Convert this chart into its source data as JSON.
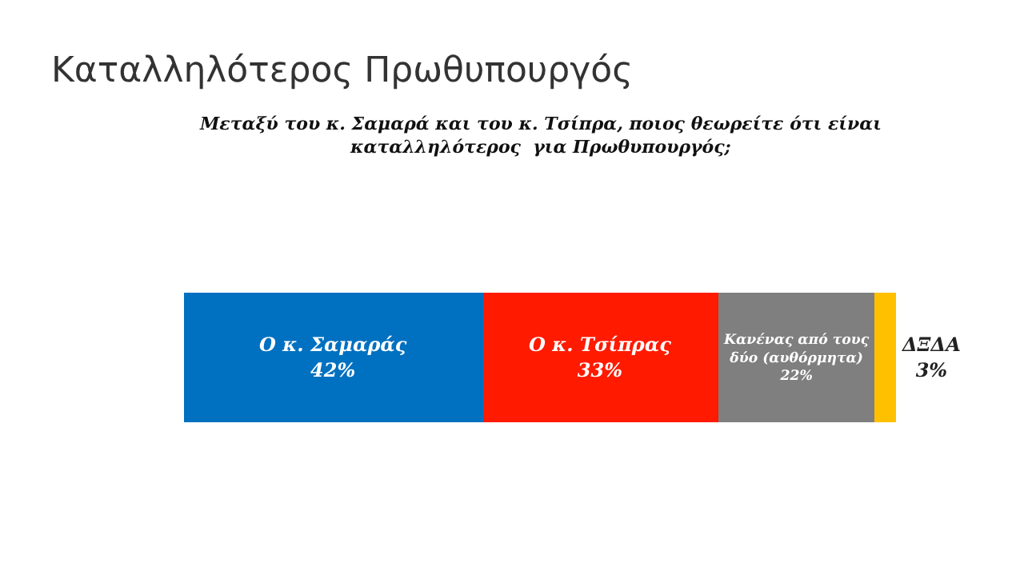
{
  "chart_data": {
    "type": "bar",
    "orientation": "horizontal",
    "stacked": true,
    "title": "Καταλληλότερος Πρωθυπουργός",
    "subtitle": "Μεταξύ του κ. Σαμαρά και του κ. Τσίπρα, ποιος θεωρείτε ότι είναι\nκαταλληλότερος  για Πρωθυπουργός;",
    "categories": [
      null
    ],
    "series": [
      {
        "name": "Ο κ. Σαμαράς",
        "color": "#0070c0",
        "values": [
          42
        ],
        "value_labels": [
          "42%"
        ]
      },
      {
        "name": "Ο κ. Τσίπρας",
        "color": "#ff1a00",
        "values": [
          33
        ],
        "value_labels": [
          "33%"
        ]
      },
      {
        "name": "Κανένας από τους\nδύο (αυθόρμητα)",
        "color": "#7f7f7f",
        "values": [
          22
        ],
        "value_labels": [
          "22%"
        ]
      },
      {
        "name": "ΔΞΔΑ",
        "color": "#ffc000",
        "values": [
          3
        ],
        "value_labels": [
          "3%"
        ]
      }
    ],
    "xlim": [
      0,
      100
    ],
    "tick_labels": false
  }
}
